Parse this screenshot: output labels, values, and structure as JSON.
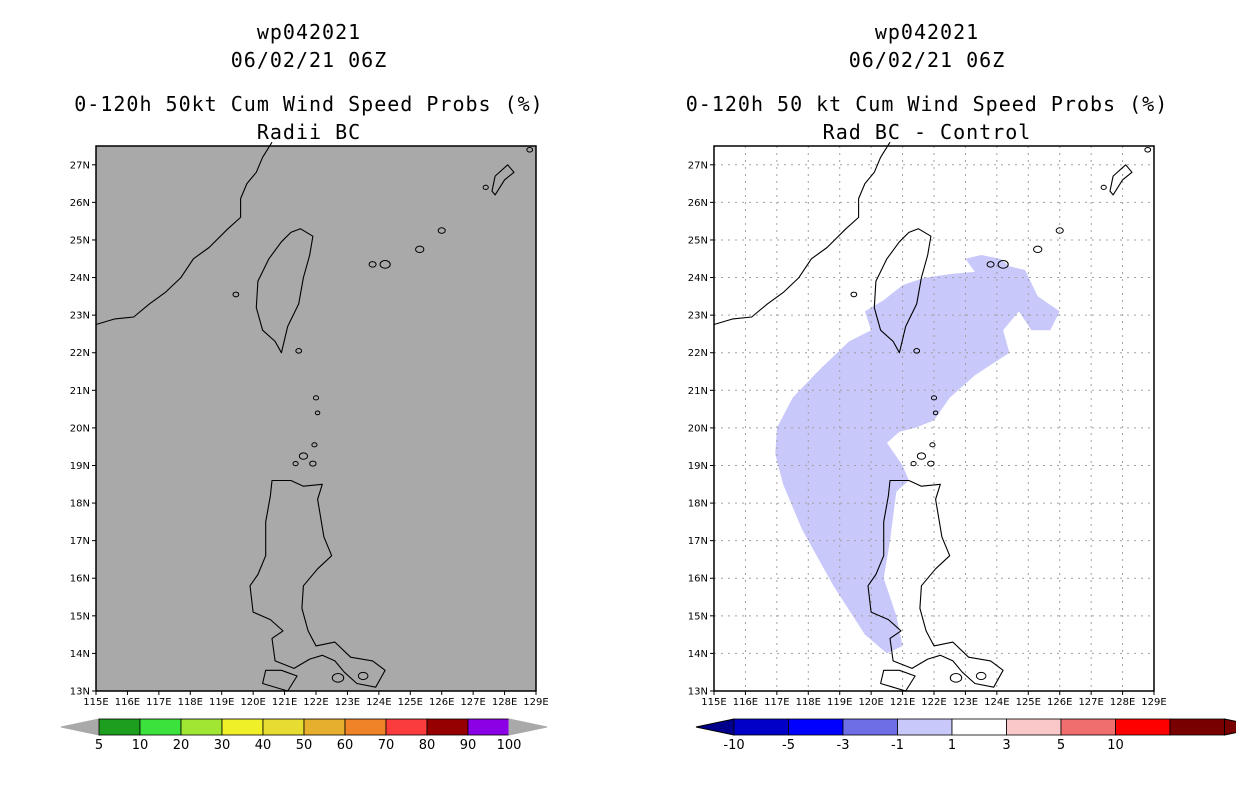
{
  "colors": {
    "left_background": "#a9a9a9",
    "right_background": "#ffffff",
    "shade": "#c8c8fa",
    "grid": "#a0a0a0",
    "left_colorbar": [
      "#1e9e1e",
      "#3ce23c",
      "#a0e632",
      "#f0f028",
      "#e6dc32",
      "#e6af2d",
      "#f08228",
      "#fa3c3c",
      "#960000",
      "#8c00e6"
    ],
    "right_colorbar": [
      "#0000c8",
      "#0000ff",
      "#6e6ee6",
      "#c8c8fa",
      "#ffffff",
      "#fac8c8",
      "#f06e6e",
      "#ff0000",
      "#780000"
    ]
  },
  "lat_labels": [
    "13N",
    "14N",
    "15N",
    "16N",
    "17N",
    "18N",
    "19N",
    "20N",
    "21N",
    "22N",
    "23N",
    "24N",
    "25N",
    "26N",
    "27N"
  ],
  "lon_labels": [
    "115E",
    "116E",
    "117E",
    "118E",
    "119E",
    "120E",
    "121E",
    "122E",
    "123E",
    "124E",
    "125E",
    "126E",
    "127E",
    "128E",
    "129E"
  ],
  "left": {
    "storm_id": "wp042021",
    "datetime": "06/02/21 06Z",
    "title": "0-120h 50kt Cum Wind Speed Probs (%)",
    "subtitle": "Radii BC",
    "colorbar_labels": [
      "5",
      "10",
      "20",
      "30",
      "40",
      "50",
      "60",
      "70",
      "80",
      "90",
      "100"
    ]
  },
  "right": {
    "storm_id": "wp042021",
    "datetime": "06/02/21 06Z",
    "title": "0-120h 50 kt Cum Wind Speed Probs (%)",
    "subtitle": "Rad BC - Control",
    "colorbar_labels": [
      "-10",
      "-5",
      "-3",
      "-1",
      "1",
      "3",
      "5",
      "10"
    ]
  }
}
